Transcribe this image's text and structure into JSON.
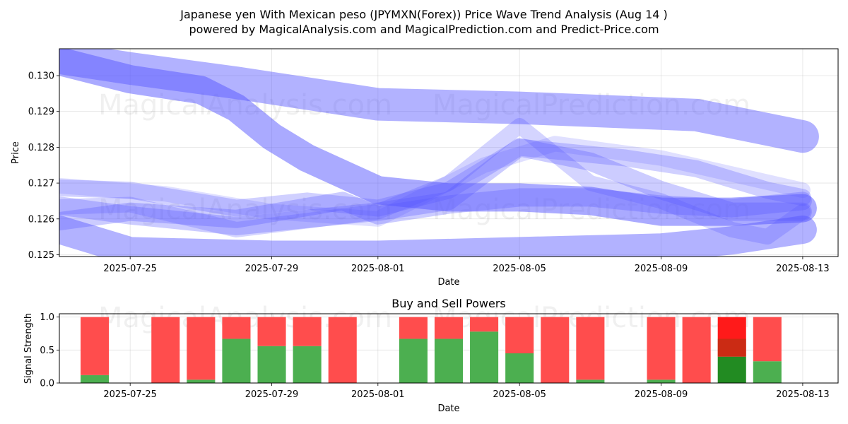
{
  "header": {
    "title": "Japanese yen With Mexican peso (JPYMXN(Forex)) Price Wave Trend Analysis (Aug 14 )",
    "subtitle": "powered by MagicalAnalysis.com and MagicalPrediction.com and Predict-Price.com"
  },
  "watermarks": [
    "MagicalAnalysis.com",
    "MagicalPrediction.com"
  ],
  "colors": {
    "wave": "#5555ff",
    "buy": "#4caf50",
    "sell": "#ff4d4d",
    "buy_strong": "#228b22",
    "sell_strong": "#ff1a1a"
  },
  "chart_data": [
    {
      "type": "line",
      "title": "",
      "xlabel": "Date",
      "ylabel": "Price",
      "xlim": [
        "2025-07-23",
        "2025-08-14"
      ],
      "ylim": [
        0.12495,
        0.13075
      ],
      "x_ticks": [
        "2025-07-25",
        "2025-07-29",
        "2025-08-01",
        "2025-08-05",
        "2025-08-09",
        "2025-08-13"
      ],
      "y_ticks": [
        0.125,
        0.126,
        0.127,
        0.128,
        0.129,
        0.13
      ],
      "y_tick_labels": [
        "0.125",
        "0.126",
        "0.127",
        "0.128",
        "0.129",
        "0.130"
      ],
      "grid": true,
      "series": [
        {
          "x": [
            "2025-07-23",
            "2025-07-25",
            "2025-07-28",
            "2025-08-01",
            "2025-08-05",
            "2025-08-10",
            "2025-08-13"
          ],
          "values": [
            0.1305,
            0.1302,
            0.1298,
            0.1292,
            0.1291,
            0.1289,
            0.1283
          ],
          "opacity": 0.45,
          "width": 46
        },
        {
          "x": [
            "2025-07-23",
            "2025-07-25",
            "2025-07-27",
            "2025-07-28",
            "2025-07-29",
            "2025-07-30",
            "2025-08-01",
            "2025-08-03",
            "2025-08-05",
            "2025-08-07",
            "2025-08-09",
            "2025-08-11",
            "2025-08-13"
          ],
          "values": [
            0.1304,
            0.1299,
            0.1296,
            0.1291,
            0.1283,
            0.1277,
            0.1268,
            0.1266,
            0.1266,
            0.1265,
            0.1262,
            0.1262,
            0.1263
          ],
          "opacity": 0.5,
          "width": 40
        },
        {
          "x": [
            "2025-07-22",
            "2025-07-25",
            "2025-07-29",
            "2025-08-01",
            "2025-08-05",
            "2025-08-09",
            "2025-08-11",
            "2025-08-13"
          ],
          "values": [
            0.126,
            0.1251,
            0.125,
            0.125,
            0.1251,
            0.1252,
            0.1254,
            0.1257
          ],
          "opacity": 0.45,
          "width": 40
        },
        {
          "x": [
            "2025-07-22",
            "2025-07-25",
            "2025-07-28",
            "2025-08-01",
            "2025-08-03",
            "2025-08-05",
            "2025-08-07",
            "2025-08-09",
            "2025-08-11",
            "2025-08-13"
          ],
          "values": [
            0.1265,
            0.1261,
            0.1258,
            0.1262,
            0.1265,
            0.128,
            0.1276,
            0.1268,
            0.1262,
            0.1262
          ],
          "opacity": 0.3,
          "width": 26
        },
        {
          "x": [
            "2025-07-22",
            "2025-07-25",
            "2025-07-28",
            "2025-07-30",
            "2025-08-01",
            "2025-08-03",
            "2025-08-05",
            "2025-08-06",
            "2025-08-08",
            "2025-08-10",
            "2025-08-12",
            "2025-08-13"
          ],
          "values": [
            0.1269,
            0.1268,
            0.1263,
            0.1265,
            0.1263,
            0.1268,
            0.128,
            0.1279,
            0.1277,
            0.1274,
            0.1268,
            0.1266
          ],
          "opacity": 0.28,
          "width": 24
        },
        {
          "x": [
            "2025-07-22",
            "2025-07-25",
            "2025-07-28",
            "2025-08-01",
            "2025-08-03",
            "2025-08-05",
            "2025-08-07",
            "2025-08-09",
            "2025-08-11",
            "2025-08-12",
            "2025-08-13"
          ],
          "values": [
            0.1263,
            0.1264,
            0.1257,
            0.1262,
            0.127,
            0.1286,
            0.127,
            0.1265,
            0.1257,
            0.1255,
            0.1262
          ],
          "opacity": 0.25,
          "width": 22
        },
        {
          "x": [
            "2025-07-22",
            "2025-07-25",
            "2025-07-28",
            "2025-07-31",
            "2025-08-01",
            "2025-08-03",
            "2025-08-05",
            "2025-08-07",
            "2025-08-09",
            "2025-08-11",
            "2025-08-13"
          ],
          "values": [
            0.1258,
            0.1262,
            0.126,
            0.1265,
            0.1261,
            0.1264,
            0.1266,
            0.1266,
            0.1264,
            0.1263,
            0.1265
          ],
          "opacity": 0.3,
          "width": 26
        },
        {
          "x": [
            "2025-07-22",
            "2025-07-26",
            "2025-07-29",
            "2025-08-01",
            "2025-08-04",
            "2025-08-06",
            "2025-08-09",
            "2025-08-13"
          ],
          "values": [
            0.127,
            0.1267,
            0.1262,
            0.126,
            0.1275,
            0.1281,
            0.1277,
            0.1268
          ],
          "opacity": 0.18,
          "width": 22
        }
      ]
    },
    {
      "type": "bar",
      "title": "Buy and Sell Powers",
      "xlabel": "Date",
      "ylabel": "Signal Strength",
      "xlim": [
        "2025-07-23",
        "2025-08-14"
      ],
      "ylim": [
        0,
        1.05
      ],
      "x_ticks": [
        "2025-07-25",
        "2025-07-29",
        "2025-08-01",
        "2025-08-05",
        "2025-08-09",
        "2025-08-13"
      ],
      "y_ticks": [
        0.0,
        0.5,
        1.0
      ],
      "y_tick_labels": [
        "0.0",
        "0.5",
        "1.0"
      ],
      "grid": true,
      "bars": [
        {
          "date": "2025-07-24",
          "buy": 0.12,
          "sell": 0.88
        },
        {
          "date": "2025-07-26",
          "buy": 0.0,
          "sell": 1.0
        },
        {
          "date": "2025-07-27",
          "buy": 0.05,
          "sell": 0.95
        },
        {
          "date": "2025-07-28",
          "buy": 0.67,
          "sell": 0.33
        },
        {
          "date": "2025-07-29",
          "buy": 0.56,
          "sell": 0.44
        },
        {
          "date": "2025-07-30",
          "buy": 0.56,
          "sell": 0.44
        },
        {
          "date": "2025-07-31",
          "buy": 0.0,
          "sell": 1.0
        },
        {
          "date": "2025-08-02",
          "buy": 0.67,
          "sell": 0.33
        },
        {
          "date": "2025-08-03",
          "buy": 0.67,
          "sell": 0.33
        },
        {
          "date": "2025-08-04",
          "buy": 0.78,
          "sell": 0.22
        },
        {
          "date": "2025-08-05",
          "buy": 0.45,
          "sell": 0.55
        },
        {
          "date": "2025-08-06",
          "buy": 0.0,
          "sell": 1.0
        },
        {
          "date": "2025-08-07",
          "buy": 0.05,
          "sell": 0.95
        },
        {
          "date": "2025-08-09",
          "buy": 0.05,
          "sell": 0.95
        },
        {
          "date": "2025-08-10",
          "buy": 0.0,
          "sell": 1.0
        },
        {
          "date": "2025-08-11",
          "buy": 0.4,
          "sell": 0.6,
          "strong": true
        },
        {
          "date": "2025-08-12",
          "buy": 0.33,
          "sell": 0.67
        }
      ]
    }
  ]
}
